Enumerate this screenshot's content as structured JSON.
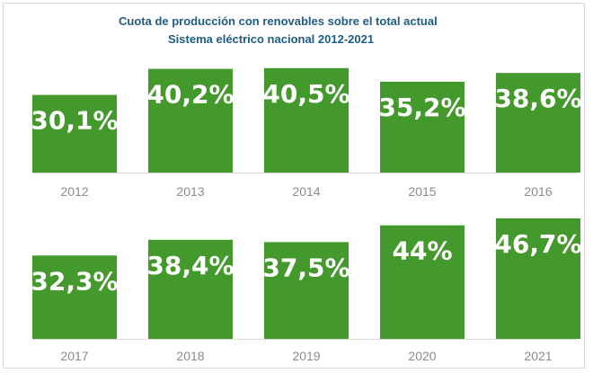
{
  "chart_data": {
    "type": "bar",
    "title": "Cuota de producción con renovables sobre el total actual",
    "subtitle": "Sistema eléctrico nacional 2012-2021",
    "unit": "%",
    "bar_color": "#43992b",
    "axis_color": "#d9d9d9",
    "panels": [
      {
        "categories": [
          "2012",
          "2013",
          "2014",
          "2015",
          "2016"
        ],
        "values": [
          30.1,
          40.2,
          40.5,
          35.2,
          38.6
        ],
        "labels": [
          "30,1%",
          "40,2%",
          "40,5%",
          "35,2%",
          "38,6%"
        ]
      },
      {
        "categories": [
          "2017",
          "2018",
          "2019",
          "2020",
          "2021"
        ],
        "values": [
          32.3,
          38.4,
          37.5,
          44,
          46.7
        ],
        "labels": [
          "32,3%",
          "38,4%",
          "37,5%",
          "44%",
          "46,7%"
        ]
      }
    ]
  }
}
